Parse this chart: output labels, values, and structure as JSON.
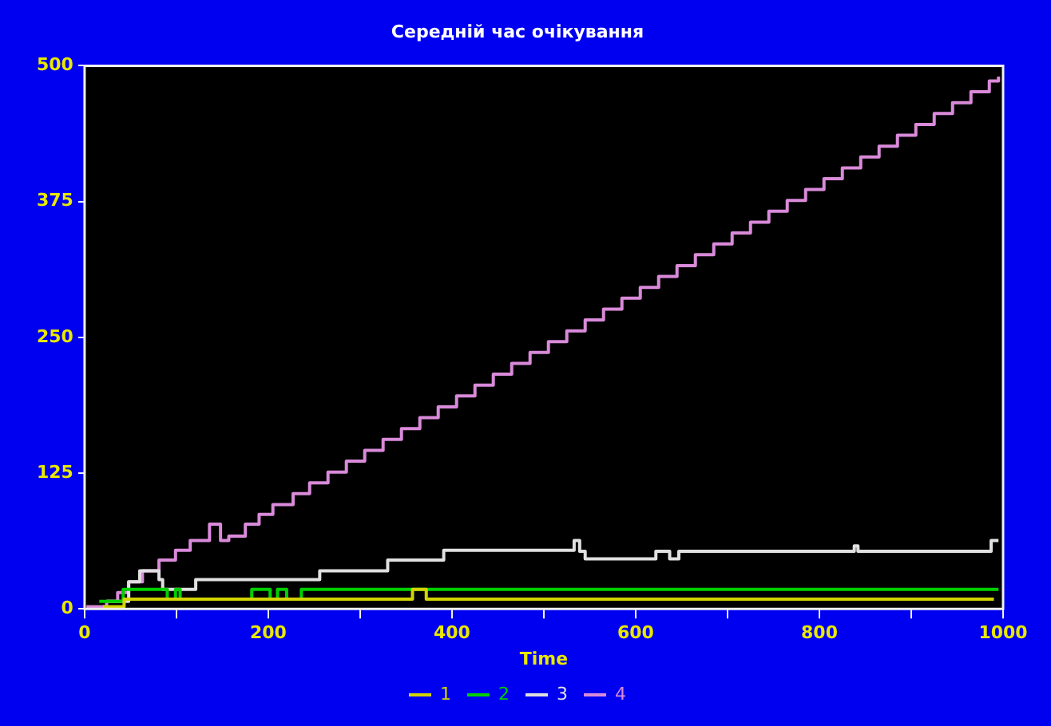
{
  "chart_data": {
    "type": "step",
    "title": "Середній час очікування",
    "xlabel": "Time",
    "xlim": [
      0,
      1000
    ],
    "xticks": [
      0,
      {
        "value": 100,
        "label": null
      },
      200,
      {
        "value": 300,
        "label": null
      },
      400,
      {
        "value": 500,
        "label": null
      },
      600,
      {
        "value": 700,
        "label": null
      },
      800,
      {
        "value": 900,
        "label": null
      },
      1000
    ],
    "ylim": [
      0,
      500
    ],
    "yticks": [
      0,
      125,
      250,
      375,
      500
    ],
    "legend": "bottom",
    "marker": "none",
    "series": [
      {
        "name": "1",
        "color": "#d4d400",
        "x": [
          20,
          43,
          357,
          372,
          990
        ],
        "values": [
          2,
          9,
          18,
          9,
          9
        ]
      },
      {
        "name": "2",
        "color": "#00d000",
        "x": [
          16,
          42,
          90,
          99,
          104,
          182,
          202,
          210,
          220,
          236,
          995
        ],
        "values": [
          7,
          18,
          9,
          18,
          9,
          18,
          9,
          18,
          9,
          18,
          18
        ]
      },
      {
        "name": "3",
        "color": "#e0e0e0",
        "x": [
          24,
          48,
          60,
          81,
          85,
          121,
          256,
          330,
          391,
          533,
          539,
          545,
          622,
          637,
          647,
          838,
          842,
          987,
          995
        ],
        "values": [
          7,
          25,
          35,
          27,
          18,
          27,
          35,
          45,
          54,
          63,
          53,
          46,
          53,
          46,
          53,
          58,
          53,
          63,
          63
        ]
      },
      {
        "name": "4",
        "color": "#d98ad9",
        "x": [
          2,
          24,
          36,
          48,
          63,
          81,
          99,
          115,
          136,
          148,
          157,
          175,
          190,
          205,
          227,
          245,
          265,
          285,
          305,
          325,
          345,
          365,
          385,
          405,
          425,
          445,
          465,
          485,
          505,
          525,
          545,
          565,
          585,
          605,
          625,
          645,
          665,
          685,
          705,
          725,
          745,
          765,
          785,
          805,
          825,
          845,
          865,
          885,
          905,
          925,
          945,
          965,
          985,
          995
        ],
        "values": [
          2,
          7,
          15,
          25,
          35,
          45,
          54,
          63,
          78,
          63,
          67,
          78,
          87,
          96,
          106,
          116,
          126,
          136,
          146,
          156,
          166,
          176,
          186,
          196,
          206,
          216,
          226,
          236,
          246,
          256,
          266,
          276,
          286,
          296,
          306,
          316,
          326,
          336,
          346,
          356,
          366,
          376,
          386,
          396,
          406,
          416,
          426,
          436,
          446,
          456,
          466,
          476,
          486,
          490
        ]
      }
    ]
  }
}
